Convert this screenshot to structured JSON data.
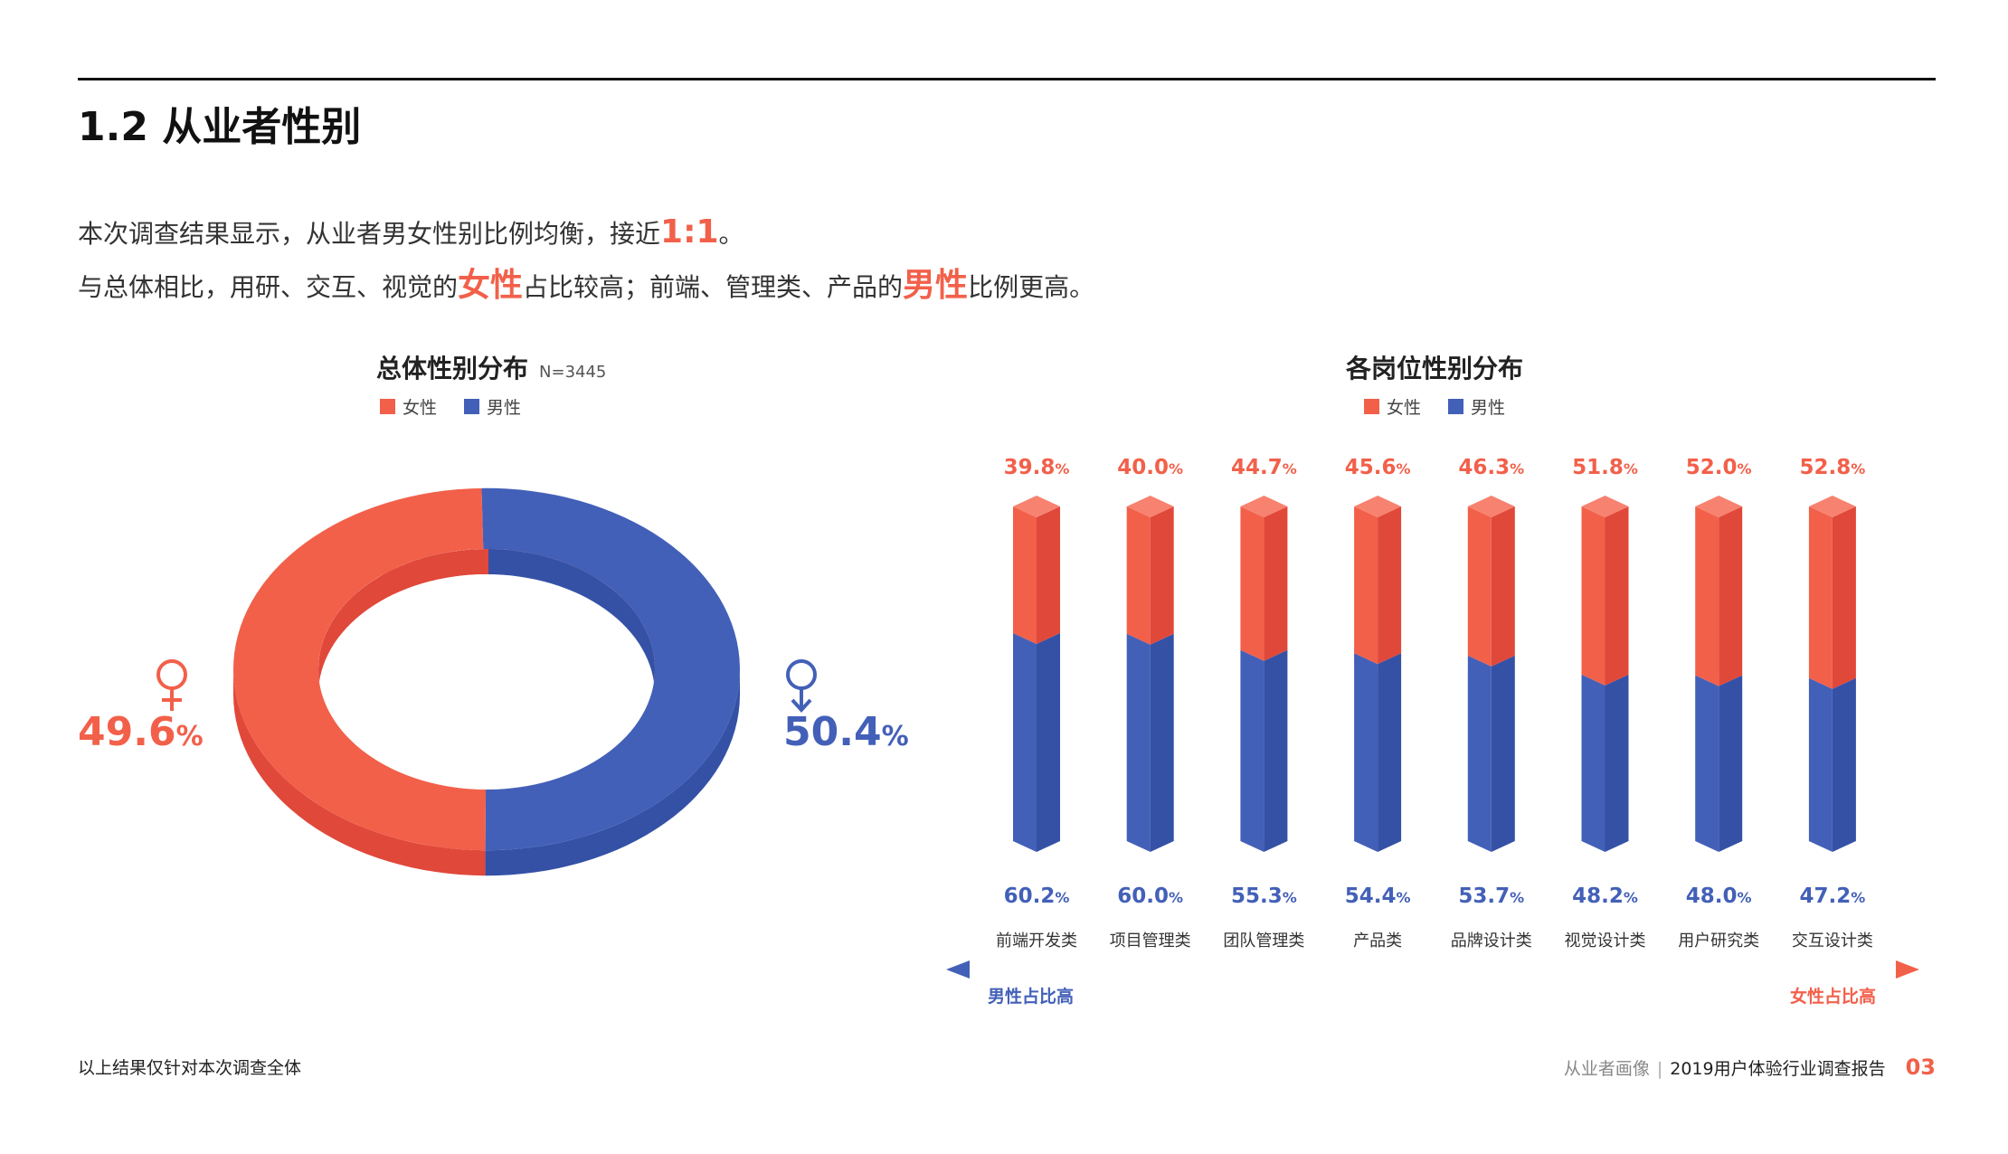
{
  "page": {
    "section_title": "1.2 从业者性别",
    "intro_line1": {
      "before": "本次调查结果显示，从业者男女性别比例均衡，接近",
      "emph": "1:1",
      "after": "。"
    },
    "intro_line2": {
      "p1": "与总体相比，用研、交互、视觉的",
      "emph1": "女性",
      "p2": "占比较高；前端、管理类、产品的",
      "emph2": "男性",
      "p3": "比例更高。"
    },
    "footer_note": "以上结果仅针对本次调查全体",
    "footer_section": "从业者画像",
    "footer_separator": "|",
    "footer_report": "2019用户体验行业调查报告",
    "page_number": "03"
  },
  "colors": {
    "female": "#f2604a",
    "female_dark": "#e0483a",
    "female_top": "#f7826f",
    "male": "#4360b8",
    "male_dark": "#3451a6",
    "male_top": "#5a76c8"
  },
  "legend": {
    "female": "女性",
    "male": "男性"
  },
  "chart_data": [
    {
      "type": "pie",
      "title": "总体性别分布",
      "subtitle": "N=3445",
      "slices": [
        {
          "name": "女性",
          "value": 49.6,
          "value_label": "49.6",
          "unit": "%"
        },
        {
          "name": "男性",
          "value": 50.4,
          "value_label": "50.4",
          "unit": "%"
        }
      ],
      "legend_position": "top"
    },
    {
      "type": "bar",
      "title": "各岗位性别分布",
      "stacked": true,
      "categories": [
        "前端开发类",
        "项目管理类",
        "团队管理类",
        "产品类",
        "品牌设计类",
        "视觉设计类",
        "用户研究类",
        "交互设计类"
      ],
      "series": [
        {
          "name": "女性",
          "values": [
            39.8,
            40.0,
            44.7,
            45.6,
            46.3,
            51.8,
            52.0,
            52.8
          ],
          "labels": [
            "39.8",
            "40.0",
            "44.7",
            "45.6",
            "46.3",
            "51.8",
            "52.0",
            "52.8"
          ]
        },
        {
          "name": "男性",
          "values": [
            60.2,
            60.0,
            55.3,
            54.4,
            53.7,
            48.2,
            48.0,
            47.2
          ],
          "labels": [
            "60.2",
            "60.0",
            "55.3",
            "54.4",
            "53.7",
            "48.2",
            "48.0",
            "47.2"
          ]
        }
      ],
      "unit": "%",
      "ylim": [
        0,
        100
      ],
      "legend_position": "top",
      "axis_annotations": {
        "left": "男性占比高",
        "right": "女性占比高"
      }
    }
  ]
}
